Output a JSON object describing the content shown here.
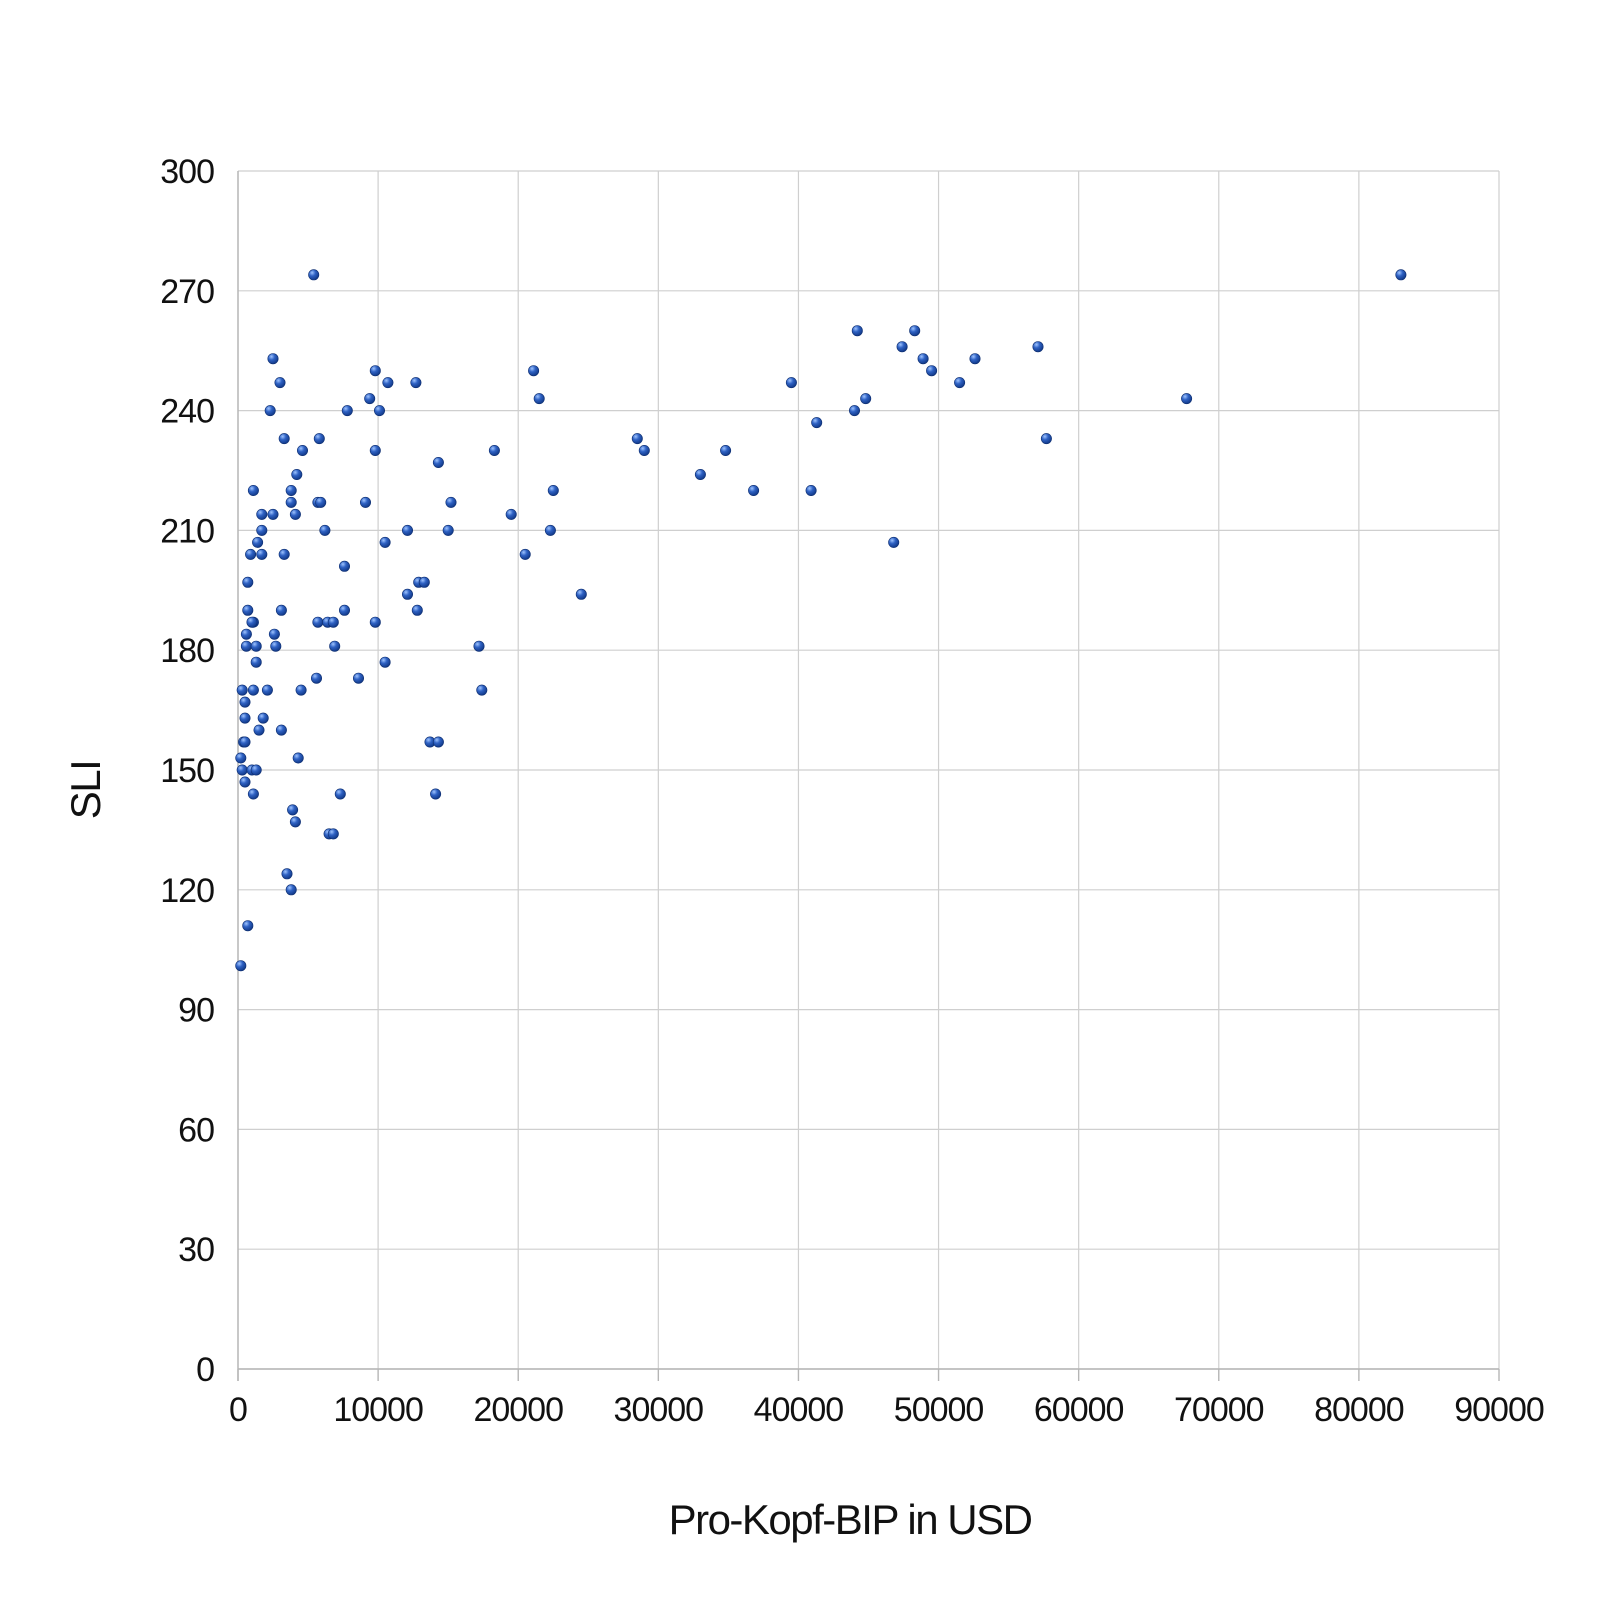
{
  "chart_data": {
    "type": "scatter",
    "title": "",
    "xlabel": "Pro-Kopf-BIP in USD",
    "ylabel": "SLI",
    "xlim": [
      0,
      90000
    ],
    "ylim": [
      0,
      300
    ],
    "xticks": [
      0,
      10000,
      20000,
      30000,
      40000,
      50000,
      60000,
      70000,
      80000,
      90000
    ],
    "yticks": [
      0,
      30,
      60,
      90,
      120,
      150,
      180,
      210,
      240,
      270,
      300
    ],
    "grid": true,
    "legend": "none",
    "marker_color": "#1f4fa8",
    "series": [
      {
        "points": [
          [
            5400,
            274
          ],
          [
            83000,
            274
          ],
          [
            2500,
            253
          ],
          [
            3000,
            247
          ],
          [
            2300,
            240
          ],
          [
            3300,
            233
          ],
          [
            4600,
            230
          ],
          [
            4200,
            224
          ],
          [
            1100,
            220
          ],
          [
            3800,
            220
          ],
          [
            3800,
            217
          ],
          [
            5700,
            217
          ],
          [
            5900,
            217
          ],
          [
            4100,
            214
          ],
          [
            1700,
            214
          ],
          [
            2500,
            214
          ],
          [
            1700,
            210
          ],
          [
            6200,
            210
          ],
          [
            1400,
            207
          ],
          [
            900,
            204
          ],
          [
            1700,
            204
          ],
          [
            3300,
            204
          ],
          [
            700,
            197
          ],
          [
            700,
            190
          ],
          [
            3100,
            190
          ],
          [
            1100,
            187
          ],
          [
            1000,
            187
          ],
          [
            600,
            184
          ],
          [
            2600,
            184
          ],
          [
            2700,
            181
          ],
          [
            600,
            181
          ],
          [
            1300,
            181
          ],
          [
            1300,
            177
          ],
          [
            300,
            170
          ],
          [
            1100,
            170
          ],
          [
            2100,
            170
          ],
          [
            500,
            167
          ],
          [
            500,
            163
          ],
          [
            1800,
            163
          ],
          [
            3100,
            160
          ],
          [
            1500,
            160
          ],
          [
            400,
            157
          ],
          [
            500,
            157
          ],
          [
            200,
            153
          ],
          [
            4300,
            153
          ],
          [
            300,
            150
          ],
          [
            1000,
            150
          ],
          [
            1300,
            150
          ],
          [
            500,
            147
          ],
          [
            1100,
            144
          ],
          [
            3900,
            140
          ],
          [
            4100,
            137
          ],
          [
            3500,
            124
          ],
          [
            3800,
            120
          ],
          [
            700,
            111
          ],
          [
            200,
            101
          ],
          [
            5800,
            233
          ],
          [
            7800,
            240
          ],
          [
            9400,
            243
          ],
          [
            9800,
            250
          ],
          [
            10100,
            240
          ],
          [
            10700,
            247
          ],
          [
            12700,
            247
          ],
          [
            9800,
            230
          ],
          [
            14300,
            227
          ],
          [
            9100,
            217
          ],
          [
            15200,
            217
          ],
          [
            12100,
            210
          ],
          [
            15000,
            210
          ],
          [
            10500,
            207
          ],
          [
            7600,
            201
          ],
          [
            12900,
            197
          ],
          [
            13300,
            197
          ],
          [
            12100,
            194
          ],
          [
            7600,
            190
          ],
          [
            12800,
            190
          ],
          [
            5700,
            187
          ],
          [
            6400,
            187
          ],
          [
            6800,
            187
          ],
          [
            9800,
            187
          ],
          [
            6900,
            181
          ],
          [
            10500,
            177
          ],
          [
            5600,
            173
          ],
          [
            8600,
            173
          ],
          [
            4500,
            170
          ],
          [
            13700,
            157
          ],
          [
            14300,
            157
          ],
          [
            7300,
            144
          ],
          [
            14100,
            144
          ],
          [
            6500,
            134
          ],
          [
            6800,
            134
          ],
          [
            18300,
            230
          ],
          [
            21100,
            250
          ],
          [
            21500,
            243
          ],
          [
            19500,
            214
          ],
          [
            22500,
            220
          ],
          [
            22300,
            210
          ],
          [
            20500,
            204
          ],
          [
            24500,
            194
          ],
          [
            17200,
            181
          ],
          [
            17400,
            170
          ],
          [
            28500,
            233
          ],
          [
            29000,
            230
          ],
          [
            33000,
            224
          ],
          [
            34800,
            230
          ],
          [
            36800,
            220
          ],
          [
            39500,
            247
          ],
          [
            41300,
            237
          ],
          [
            40900,
            220
          ],
          [
            44000,
            240
          ],
          [
            44200,
            260
          ],
          [
            44800,
            243
          ],
          [
            46800,
            207
          ],
          [
            47400,
            256
          ],
          [
            48300,
            260
          ],
          [
            48900,
            253
          ],
          [
            49500,
            250
          ],
          [
            51500,
            247
          ],
          [
            52600,
            253
          ],
          [
            57100,
            256
          ],
          [
            57700,
            233
          ],
          [
            67700,
            243
          ]
        ]
      }
    ]
  }
}
